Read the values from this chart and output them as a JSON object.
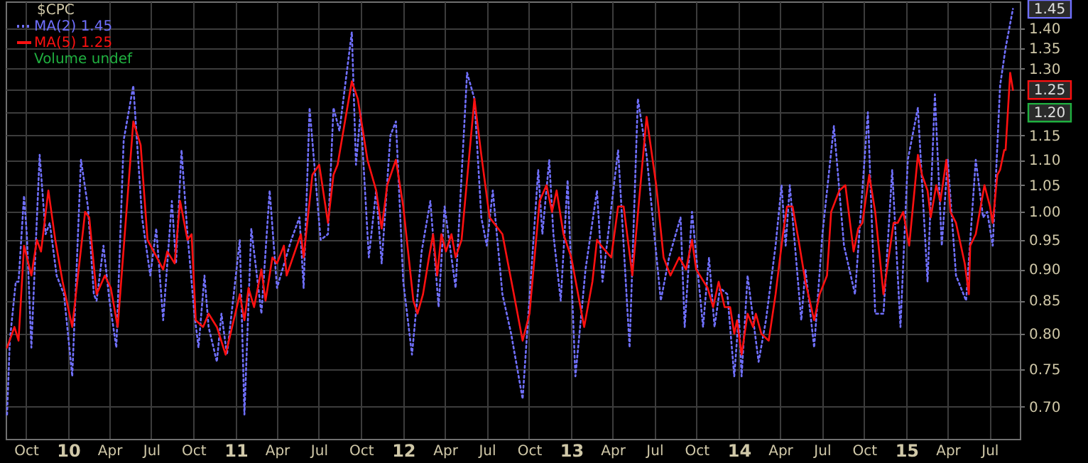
{
  "chart_data": {
    "type": "line",
    "legend_title": "$CPC",
    "legend": "top left",
    "grid": true,
    "log": true,
    "marker": "none",
    "xlim": [
      "2009-08-18",
      "2015-09-05"
    ],
    "xticks": [
      {
        "value": "2009-10-01",
        "label": "Oct"
      },
      {
        "value": "2010-01-01",
        "label": "10"
      },
      {
        "value": "2010-04-01",
        "label": "Apr"
      },
      {
        "value": "2010-07-01",
        "label": "Jul"
      },
      {
        "value": "2010-10-01",
        "label": "Oct"
      },
      {
        "value": "2011-01-01",
        "label": "11"
      },
      {
        "value": "2011-04-01",
        "label": "Apr"
      },
      {
        "value": "2011-07-01",
        "label": "Jul"
      },
      {
        "value": "2011-10-01",
        "label": "Oct"
      },
      {
        "value": "2012-01-01",
        "label": "12"
      },
      {
        "value": "2012-04-01",
        "label": "Apr"
      },
      {
        "value": "2012-07-01",
        "label": "Jul"
      },
      {
        "value": "2012-10-01",
        "label": "Oct"
      },
      {
        "value": "2013-01-01",
        "label": "13"
      },
      {
        "value": "2013-04-01",
        "label": "Apr"
      },
      {
        "value": "2013-07-01",
        "label": "Jul"
      },
      {
        "value": "2013-10-01",
        "label": "Oct"
      },
      {
        "value": "2014-01-01",
        "label": "14"
      },
      {
        "value": "2014-04-01",
        "label": "Apr"
      },
      {
        "value": "2014-07-01",
        "label": "Jul"
      },
      {
        "value": "2014-10-01",
        "label": "Oct"
      },
      {
        "value": "2015-01-01",
        "label": "15"
      },
      {
        "value": "2015-04-01",
        "label": "Apr"
      },
      {
        "value": "2015-07-01",
        "label": "Jul"
      }
    ],
    "ylim": [
      0.66,
      1.47
    ],
    "yticks": [
      {
        "value": 0.7,
        "label": "0.70"
      },
      {
        "value": 0.75,
        "label": "0.75"
      },
      {
        "value": 0.8,
        "label": "0.80"
      },
      {
        "value": 0.85,
        "label": "0.85"
      },
      {
        "value": 0.9,
        "label": "0.90"
      },
      {
        "value": 0.95,
        "label": "0.95"
      },
      {
        "value": 1.0,
        "label": "1.00"
      },
      {
        "value": 1.05,
        "label": "1.05"
      },
      {
        "value": 1.1,
        "label": "1.10"
      },
      {
        "value": 1.15,
        "label": "1.15"
      },
      {
        "value": 1.2,
        "label": null
      },
      {
        "value": 1.25,
        "label": null
      },
      {
        "value": 1.3,
        "label": "1.30"
      },
      {
        "value": 1.35,
        "label": "1.35"
      },
      {
        "value": 1.4,
        "label": "1.40"
      }
    ],
    "annotations": [
      "Volume undef",
      "1.20"
    ],
    "series": [
      {
        "name": "MA(2) 1.45",
        "color": "#7070ff",
        "line_style": "dotted",
        "x": [
          "2009-08-21",
          "2009-08-27",
          "2009-09-09",
          "2009-09-15",
          "2009-09-27",
          "2009-10-03",
          "2009-10-13",
          "2009-10-19",
          "2009-10-31",
          "2009-11-13",
          "2009-11-22",
          "2009-12-07",
          "2009-12-23",
          "2010-01-10",
          "2010-01-29",
          "2010-02-13",
          "2010-02-26",
          "2010-03-04",
          "2010-03-19",
          "2010-04-01",
          "2010-04-16",
          "2010-05-02",
          "2010-05-23",
          "2010-06-11",
          "2010-06-29",
          "2010-07-12",
          "2010-07-27",
          "2010-08-15",
          "2010-08-24",
          "2010-09-05",
          "2010-09-18",
          "2010-10-03",
          "2010-10-12",
          "2010-10-25",
          "2010-11-03",
          "2010-11-21",
          "2010-12-01",
          "2010-12-13",
          "2011-01-10",
          "2011-01-20",
          "2011-02-04",
          "2011-02-26",
          "2011-03-16",
          "2011-04-01",
          "2011-05-02",
          "2011-05-20",
          "2011-05-29",
          "2011-06-11",
          "2011-07-05",
          "2011-07-21",
          "2011-08-02",
          "2011-08-15",
          "2011-09-11",
          "2011-09-20",
          "2011-09-30",
          "2011-10-18",
          "2011-11-03",
          "2011-11-15",
          "2011-12-04",
          "2011-12-16",
          "2012-01-01",
          "2012-01-20",
          "2012-02-10",
          "2012-02-29",
          "2012-03-18",
          "2012-03-31",
          "2012-04-24",
          "2012-05-19",
          "2012-06-04",
          "2012-06-19",
          "2012-07-01",
          "2012-07-14",
          "2012-08-04",
          "2012-08-23",
          "2012-09-17",
          "2012-10-21",
          "2012-10-30",
          "2012-11-14",
          "2012-11-23",
          "2012-12-09",
          "2012-12-24",
          "2013-01-10",
          "2013-02-01",
          "2013-02-26",
          "2013-03-10",
          "2013-04-13",
          "2013-05-08",
          "2013-05-26",
          "2013-06-14",
          "2013-07-15",
          "2013-08-02",
          "2013-08-27",
          "2013-09-05",
          "2013-09-21",
          "2013-10-15",
          "2013-10-28",
          "2013-11-09",
          "2013-11-21",
          "2013-12-07",
          "2013-12-22",
          "2014-01-01",
          "2014-01-07",
          "2014-01-20",
          "2014-02-13",
          "2014-03-01",
          "2014-03-22",
          "2014-04-04",
          "2014-04-13",
          "2014-04-22",
          "2014-05-17",
          "2014-05-26",
          "2014-06-14",
          "2014-07-02",
          "2014-07-27",
          "2014-08-18",
          "2014-09-11",
          "2014-10-09",
          "2014-10-25",
          "2014-11-12",
          "2014-12-01",
          "2014-12-19",
          "2015-01-04",
          "2015-01-26",
          "2015-02-16",
          "2015-03-04",
          "2015-03-19",
          "2015-04-01",
          "2015-04-19",
          "2015-05-11",
          "2015-06-01",
          "2015-06-17",
          "2015-06-26",
          "2015-07-08",
          "2015-07-24",
          "2015-08-05",
          "2015-08-21"
        ],
        "values": [
          0.69,
          0.79,
          0.88,
          0.88,
          1.03,
          0.96,
          0.78,
          0.88,
          1.11,
          0.96,
          0.98,
          0.89,
          0.86,
          0.74,
          1.1,
          1.01,
          0.86,
          0.85,
          0.94,
          0.85,
          0.78,
          1.14,
          1.26,
          0.99,
          0.89,
          0.97,
          0.82,
          1.02,
          0.91,
          1.12,
          0.96,
          0.83,
          0.78,
          0.89,
          0.81,
          0.76,
          0.83,
          0.77,
          0.95,
          0.69,
          0.97,
          0.83,
          1.04,
          0.87,
          0.95,
          0.99,
          0.87,
          1.21,
          0.95,
          0.96,
          1.21,
          1.16,
          1.39,
          1.09,
          1.2,
          0.92,
          1.04,
          0.91,
          1.15,
          1.18,
          0.88,
          0.77,
          0.93,
          1.02,
          0.84,
          1.01,
          0.87,
          1.29,
          1.23,
          0.99,
          0.94,
          1.04,
          0.86,
          0.8,
          0.71,
          1.08,
          0.96,
          1.1,
          0.96,
          0.85,
          1.06,
          0.74,
          0.9,
          1.04,
          0.88,
          1.12,
          0.78,
          1.23,
          1.11,
          0.85,
          0.92,
          0.99,
          0.81,
          1.0,
          0.81,
          0.92,
          0.81,
          0.87,
          0.86,
          0.74,
          0.83,
          0.74,
          0.89,
          0.76,
          0.82,
          0.94,
          1.05,
          0.94,
          1.05,
          0.82,
          0.9,
          0.78,
          0.96,
          1.17,
          0.94,
          0.86,
          1.2,
          0.83,
          0.83,
          1.08,
          0.81,
          1.1,
          1.21,
          0.88,
          1.24,
          0.94,
          1.1,
          0.89,
          0.85,
          1.1,
          0.99,
          1.0,
          0.94,
          1.26,
          1.35,
          1.45
        ],
        "value_labels": [
          null,
          null,
          null,
          null,
          null,
          null,
          null,
          null,
          null,
          null,
          null,
          null,
          null,
          null,
          null,
          null,
          null,
          null,
          null,
          null,
          null,
          null,
          null,
          null,
          null,
          null,
          null,
          null,
          null,
          null,
          null,
          null,
          null,
          null,
          null,
          null,
          null,
          null,
          null,
          null,
          null,
          null,
          null,
          null,
          null,
          null,
          null,
          null,
          null,
          null,
          null,
          null,
          null,
          null,
          null,
          null,
          null,
          null,
          null,
          null,
          null,
          null,
          null,
          null,
          null,
          null,
          null,
          null,
          null,
          null,
          null,
          null,
          null,
          null,
          null,
          null,
          null,
          null,
          null,
          null,
          null,
          null,
          null,
          null,
          null,
          null,
          null,
          null,
          null,
          null,
          null,
          null,
          null,
          null,
          null,
          null,
          null,
          null,
          null,
          null,
          null,
          null,
          null,
          null,
          null,
          null,
          null,
          null,
          null,
          null,
          null,
          null,
          null,
          null,
          null,
          null,
          null,
          null,
          null,
          null,
          null,
          null,
          null,
          null,
          null,
          null,
          null,
          null,
          null,
          null,
          null,
          null,
          null,
          null,
          null,
          "1.45"
        ]
      },
      {
        "name": "MA(5) 1.25",
        "color": "#ff1010",
        "line_style": "solid",
        "x": [
          "2009-08-21",
          "2009-09-06",
          "2009-09-15",
          "2009-09-27",
          "2009-10-13",
          "2009-10-25",
          "2009-11-03",
          "2009-11-19",
          "2009-12-04",
          "2009-12-20",
          "2010-01-10",
          "2010-02-07",
          "2010-02-16",
          "2010-03-04",
          "2010-03-22",
          "2010-04-04",
          "2010-04-19",
          "2010-05-23",
          "2010-06-08",
          "2010-06-23",
          "2010-07-27",
          "2010-08-05",
          "2010-08-21",
          "2010-09-02",
          "2010-09-18",
          "2010-09-27",
          "2010-10-06",
          "2010-10-22",
          "2010-11-03",
          "2010-11-21",
          "2010-12-10",
          "2011-01-10",
          "2011-01-20",
          "2011-01-29",
          "2011-02-10",
          "2011-02-26",
          "2011-03-07",
          "2011-03-22",
          "2011-04-01",
          "2011-04-16",
          "2011-04-22",
          "2011-05-23",
          "2011-05-29",
          "2011-06-17",
          "2011-07-02",
          "2011-07-21",
          "2011-08-02",
          "2011-08-11",
          "2011-08-27",
          "2011-09-11",
          "2011-09-24",
          "2011-10-15",
          "2011-11-03",
          "2011-11-15",
          "2011-11-27",
          "2011-12-16",
          "2012-01-01",
          "2012-01-23",
          "2012-02-01",
          "2012-02-13",
          "2012-02-26",
          "2012-03-06",
          "2012-03-15",
          "2012-03-24",
          "2012-04-03",
          "2012-04-15",
          "2012-04-24",
          "2012-05-07",
          "2012-06-04",
          "2012-06-19",
          "2012-07-07",
          "2012-08-04",
          "2012-08-29",
          "2012-09-17",
          "2012-10-02",
          "2012-10-24",
          "2012-11-08",
          "2012-11-20",
          "2012-11-30",
          "2012-12-15",
          "2013-01-01",
          "2013-01-29",
          "2013-02-16",
          "2013-02-26",
          "2013-03-07",
          "2013-03-29",
          "2013-04-13",
          "2013-04-25",
          "2013-05-14",
          "2013-06-14",
          "2013-07-05",
          "2013-07-21",
          "2013-08-05",
          "2013-08-24",
          "2013-09-08",
          "2013-09-21",
          "2013-09-30",
          "2013-10-25",
          "2013-11-06",
          "2013-11-18",
          "2013-12-01",
          "2013-12-13",
          "2013-12-22",
          "2013-12-28",
          "2014-01-07",
          "2014-01-20",
          "2014-02-01",
          "2014-02-07",
          "2014-02-19",
          "2014-03-07",
          "2014-03-22",
          "2014-04-07",
          "2014-04-16",
          "2014-04-28",
          "2014-05-11",
          "2014-05-26",
          "2014-06-14",
          "2014-06-26",
          "2014-07-12",
          "2014-07-21",
          "2014-08-08",
          "2014-08-21",
          "2014-09-08",
          "2014-09-18",
          "2014-09-27",
          "2014-10-12",
          "2014-10-25",
          "2014-11-12",
          "2014-12-04",
          "2014-12-13",
          "2014-12-25",
          "2015-01-07",
          "2015-01-26",
          "2015-02-04",
          "2015-02-16",
          "2015-02-23",
          "2015-03-07",
          "2015-03-16",
          "2015-03-29",
          "2015-04-07",
          "2015-04-19",
          "2015-05-08",
          "2015-05-17",
          "2015-05-20",
          "2015-06-01",
          "2015-06-20",
          "2015-07-02",
          "2015-07-08",
          "2015-07-18",
          "2015-07-24",
          "2015-08-02",
          "2015-08-05",
          "2015-08-15",
          "2015-08-21"
        ],
        "values": [
          0.78,
          0.81,
          0.79,
          0.94,
          0.89,
          0.95,
          0.93,
          1.04,
          0.95,
          0.88,
          0.81,
          1.0,
          0.99,
          0.86,
          0.89,
          0.87,
          0.81,
          1.18,
          1.13,
          0.95,
          0.9,
          0.93,
          0.91,
          1.02,
          0.95,
          0.96,
          0.82,
          0.81,
          0.83,
          0.81,
          0.77,
          0.86,
          0.82,
          0.87,
          0.84,
          0.9,
          0.85,
          0.92,
          0.91,
          0.94,
          0.89,
          0.96,
          0.92,
          1.07,
          1.09,
          0.98,
          1.07,
          1.09,
          1.18,
          1.27,
          1.23,
          1.1,
          1.04,
          0.97,
          1.05,
          1.1,
          1.01,
          0.85,
          0.83,
          0.86,
          0.92,
          0.96,
          0.89,
          0.96,
          0.93,
          0.96,
          0.92,
          0.95,
          1.23,
          1.11,
          0.99,
          0.96,
          0.86,
          0.79,
          0.83,
          1.02,
          1.05,
          1.0,
          1.04,
          0.96,
          0.92,
          0.81,
          0.88,
          0.95,
          0.94,
          0.92,
          1.01,
          1.01,
          0.89,
          1.19,
          1.05,
          0.92,
          0.89,
          0.92,
          0.9,
          0.95,
          0.9,
          0.87,
          0.84,
          0.88,
          0.84,
          0.84,
          0.8,
          0.82,
          0.77,
          0.83,
          0.81,
          0.83,
          0.8,
          0.79,
          0.86,
          0.96,
          1.01,
          1.01,
          0.95,
          0.88,
          0.82,
          0.86,
          0.89,
          1.0,
          1.04,
          1.05,
          0.93,
          0.97,
          0.98,
          1.07,
          1.0,
          0.86,
          0.98,
          0.98,
          1.0,
          0.94,
          1.11,
          1.07,
          1.04,
          0.99,
          1.05,
          1.02,
          1.1,
          1.0,
          0.98,
          0.91,
          0.86,
          0.94,
          0.96,
          1.05,
          1.01,
          0.98,
          1.07,
          1.08,
          1.12,
          1.12,
          1.29,
          1.25
        ],
        "value_labels": [
          null,
          null,
          null,
          null,
          null,
          null,
          null,
          null,
          null,
          null,
          null,
          null,
          null,
          null,
          null,
          null,
          null,
          null,
          null,
          null,
          null,
          null,
          null,
          null,
          null,
          null,
          null,
          null,
          null,
          null,
          null,
          null,
          null,
          null,
          null,
          null,
          null,
          null,
          null,
          null,
          null,
          null,
          null,
          null,
          null,
          null,
          null,
          null,
          null,
          null,
          null,
          null,
          null,
          null,
          null,
          null,
          null,
          null,
          null,
          null,
          null,
          null,
          null,
          null,
          null,
          null,
          null,
          null,
          null,
          null,
          null,
          null,
          null,
          null,
          null,
          null,
          null,
          null,
          null,
          null,
          null,
          null,
          null,
          null,
          null,
          null,
          null,
          null,
          null,
          null,
          null,
          null,
          null,
          null,
          null,
          null,
          null,
          null,
          null,
          null,
          null,
          null,
          null,
          null,
          null,
          null,
          null,
          null,
          null,
          null,
          null,
          null,
          null,
          null,
          null,
          null,
          null,
          null,
          null,
          null,
          null,
          null,
          null,
          null,
          null,
          null,
          null,
          null,
          null,
          null,
          null,
          null,
          null,
          null,
          null,
          null,
          null,
          null,
          null,
          null,
          null,
          null,
          null,
          null,
          null,
          null,
          null,
          null,
          null,
          null,
          null,
          null,
          null,
          "1.25"
        ]
      }
    ]
  }
}
